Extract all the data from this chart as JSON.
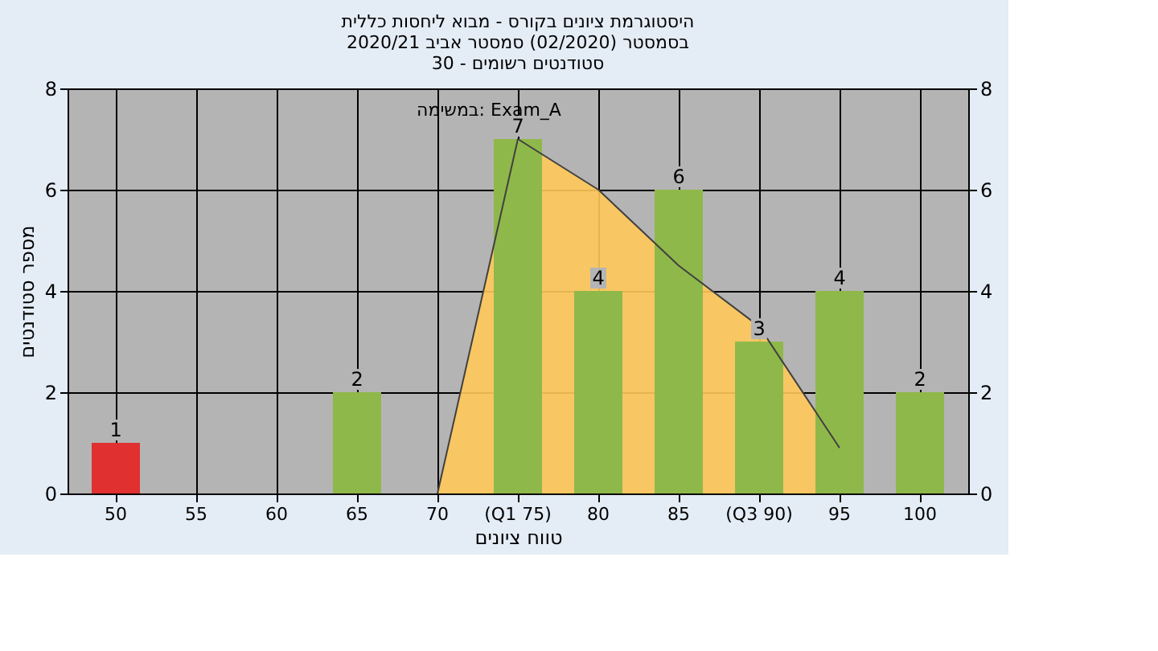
{
  "chart_data": {
    "type": "bar",
    "title": [
      "היסטוגרמת ציונים בקורס - מבוא ליחסות כללית",
      "בסמסטר  (02/2020)  סמסטר אביב 2020/21",
      "סטודנטים רשומים - 30"
    ],
    "xlabel": "טווח ציונים",
    "ylabel": "מספר סטודנטים",
    "categories": [
      "50",
      "55",
      "60",
      "65",
      "70",
      "(Q1 75)",
      "80",
      "85",
      "(Q3 90)",
      "95",
      "100"
    ],
    "series": [
      {
        "type": "area",
        "color": "#ffc85a",
        "values": [
          null,
          null,
          null,
          null,
          0,
          7,
          6,
          4.5,
          3.3,
          0.9,
          null
        ]
      },
      {
        "colors": [
          "#e03030",
          "#8fb84a",
          "#8fb84a",
          "#8fb84a",
          "#8fb84a",
          "#8fb84a",
          "#8fb84a",
          "#8fb84a",
          "#8fb84a",
          "#8fb84a",
          "#8fb84a"
        ],
        "values": [
          1,
          0,
          0,
          2,
          0,
          7,
          4,
          6,
          3,
          4,
          2
        ],
        "value_labels": [
          "1",
          null,
          null,
          "2",
          null,
          "7",
          "4",
          "6",
          "3",
          "4",
          "2"
        ]
      }
    ],
    "annotations": [
      "במשימה: Exam_A"
    ],
    "ylim": [
      0,
      8
    ],
    "yticks": [
      0,
      2,
      4,
      6,
      8
    ],
    "y2lim": [
      0,
      8
    ],
    "y2ticks": [
      0,
      2,
      4,
      6,
      8
    ],
    "grid": true
  }
}
